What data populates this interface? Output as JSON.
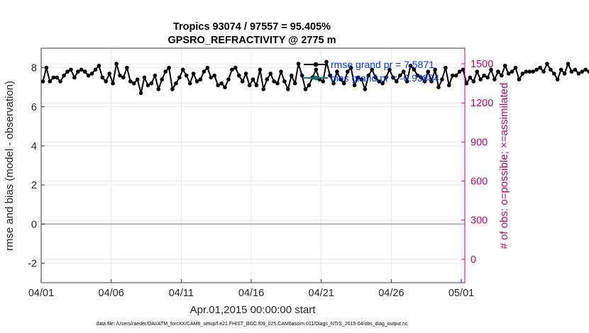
{
  "chart_data": {
    "type": "line",
    "title_line1": "Tropics 93074 / 97557 = 95.405%",
    "title_line2": "GPSRO_REFRACTIVITY @ 2775 m",
    "xlabel": "Apr.01,2015 00:00:00 start",
    "ylabel_left": "rmse and bias (model - observation)",
    "ylabel_right": "# of obs: o=possible; ×=assimilated",
    "footer": "data file: /Users/raeder/DAI/ATM_forcXX/CAM6_setup/f.e21.FHIST_BGC.f09_025.CAM6assim.011/Diags_NTrS_2015-04/obs_diag_output.nc",
    "xlim": [
      0,
      30.25
    ],
    "ylim_left": [
      -3,
      9
    ],
    "ylim_right": [
      -180,
      1620
    ],
    "x_ticks": [
      0,
      5,
      10,
      15,
      20,
      25,
      30
    ],
    "x_tick_labels": [
      "04/01",
      "04/06",
      "04/11",
      "04/16",
      "04/21",
      "04/26",
      "05/01"
    ],
    "y_left_ticks": [
      -2,
      0,
      2,
      4,
      6,
      8
    ],
    "y_left_tick_labels": [
      "-2",
      "0",
      "2",
      "4",
      "6",
      "8"
    ],
    "y_right_ticks": [
      0,
      300,
      600,
      900,
      1200,
      1500
    ],
    "y_right_tick_labels": [
      "0",
      "300",
      "600",
      "900",
      "1200",
      "1500"
    ],
    "legend": [
      {
        "name": "rmse grand pr = 7.5871",
        "color": "#000000"
      },
      {
        "name": "bias grand pr = -0.93884",
        "color": "#00807f"
      }
    ],
    "legend_text_color": "#0033ff",
    "colors": {
      "rmse": "#000000",
      "bias": "#00807f",
      "obs": "#d6005c",
      "grid": "#e6e6e6",
      "zero_line": "#b3b3b3",
      "axis_left": "#262626",
      "axis_right": "#d6005c"
    },
    "series": [
      {
        "name": "rmse",
        "x_start": 0.125,
        "x_step": 0.25,
        "values": [
          7.3,
          8.0,
          7.3,
          7.5,
          7.5,
          7.3,
          7.6,
          7.8,
          7.9,
          7.5,
          7.8,
          7.9,
          7.8,
          7.6,
          7.7,
          7.9,
          8.1,
          7.5,
          7.3,
          7.7,
          7.2,
          8.2,
          7.6,
          7.5,
          8.0,
          7.3,
          7.2,
          7.4,
          6.7,
          7.5,
          7.1,
          7.2,
          7.6,
          6.9,
          7.4,
          7.8,
          8.0,
          6.9,
          7.2,
          7.5,
          7.9,
          7.6,
          7.2,
          7.7,
          7.3,
          7.4,
          7.8,
          8.0,
          7.5,
          7.6,
          7.1,
          7.2,
          7.0,
          7.4,
          7.9,
          8.0,
          7.6,
          7.3,
          7.7,
          7.1,
          7.4,
          7.1,
          7.9,
          6.9,
          7.4,
          7.7,
          7.3,
          7.2,
          7.8,
          7.3,
          6.9,
          7.6,
          7.2,
          8.2,
          7.6,
          6.9,
          7.1,
          7.5,
          7.9,
          7.4,
          7.3,
          8.3,
          7.6,
          7.2,
          7.8,
          7.4,
          7.2,
          7.8,
          8.0,
          7.1,
          7.5,
          7.4,
          6.9,
          7.6,
          7.9,
          7.5,
          7.3,
          7.2,
          7.5,
          7.9,
          7.5,
          7.3,
          7.6,
          7.8,
          7.3,
          8.1,
          7.9,
          7.6,
          7.5,
          7.3,
          7.8,
          7.3,
          7.9,
          7.0,
          7.4,
          8.0,
          7.1,
          7.6,
          7.6,
          7.8,
          7.9,
          7.2,
          7.5,
          7.3,
          7.8,
          7.4,
          7.6,
          7.5,
          7.9,
          7.4,
          7.8,
          7.6,
          8.1,
          7.7,
          7.8,
          8.0,
          7.4,
          7.7,
          7.8,
          7.8,
          7.8,
          7.9,
          8.0,
          7.8,
          8.2,
          7.9,
          7.7,
          7.4,
          7.9,
          7.7,
          8.2,
          7.8,
          7.9,
          7.7,
          7.8,
          7.9,
          7.8,
          7.9,
          7.7,
          8.0,
          7.7,
          8.0,
          8.0,
          7.8,
          7.9,
          7.8,
          8.0,
          7.8,
          7.9,
          7.6,
          7.6,
          8.0,
          8.0,
          7.7,
          7.3,
          7.9,
          8.2,
          7.2,
          8.0,
          7.6,
          7.2,
          8.0,
          8.1,
          7.7,
          7.9,
          7.5,
          7.3,
          7.1,
          7.8,
          7.4,
          7.3,
          7.8,
          7.5,
          7.6,
          7.8,
          7.6,
          7.8,
          7.0,
          7.7,
          7.4,
          7.5,
          7.4,
          7.3,
          7.5,
          7.2,
          7.6,
          7.9,
          8.4,
          7.1,
          7.4,
          7.3,
          7.4,
          7.4,
          7.4,
          7.3,
          7.9,
          7.5,
          7.3,
          7.3,
          7.4,
          7.3,
          7.4,
          7.4,
          7.5,
          7.6,
          7.2,
          7.3,
          7.4,
          7.3,
          7.4,
          7.3,
          7.3,
          7.4,
          7.3,
          7.3,
          7.4,
          7.3,
          7.5,
          7.3,
          7.2,
          7.1,
          7.3,
          7.5,
          7.6,
          7.1,
          7.3,
          7.5,
          7.2,
          7.4,
          7.3,
          7.5,
          7.3,
          7.4,
          7.6,
          7.4,
          7.3,
          7.4,
          7.3,
          7.5,
          7.4,
          7.3,
          7.4,
          7.2,
          7.2,
          7.1,
          7.1,
          7.1,
          7.1,
          7.2,
          7.2,
          7.3,
          7.2,
          7.3,
          7.2,
          7.3,
          7.3,
          7.3,
          7.3,
          7.4,
          7.4,
          7.5,
          7.2,
          7.3,
          7.3,
          7.4,
          7.4,
          7.4,
          7.4,
          7.3,
          7.3,
          7.3,
          7.3,
          7.3,
          7.4,
          7.3,
          7.3,
          7.3,
          7.4,
          7.3,
          7.3,
          7.3,
          7.3,
          7.3,
          7.3,
          7.3
        ]
      }
    ]
  }
}
